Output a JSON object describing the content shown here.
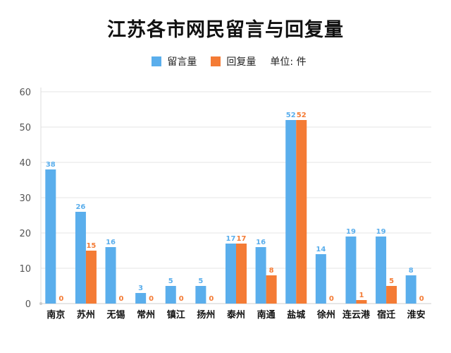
{
  "chart_data": {
    "type": "bar",
    "title": "江苏各市网民留言与回复量",
    "categories": [
      "南京",
      "苏州",
      "无锡",
      "常州",
      "镇江",
      "扬州",
      "泰州",
      "南通",
      "盐城",
      "徐州",
      "连云港",
      "宿迁",
      "淮安"
    ],
    "series": [
      {
        "name": "留言量",
        "color": "#5aaeec",
        "values": [
          38,
          26,
          16,
          3,
          5,
          5,
          17,
          16,
          52,
          14,
          19,
          19,
          8
        ]
      },
      {
        "name": "回复量",
        "color": "#f47b35",
        "values": [
          0,
          15,
          0,
          0,
          0,
          0,
          17,
          8,
          52,
          0,
          1,
          5,
          0
        ]
      }
    ],
    "unit_label": "单位: 件",
    "xlabel": "",
    "ylabel": "",
    "ylim": [
      0,
      60
    ],
    "yticks": [
      0,
      10,
      20,
      30,
      40,
      50,
      60
    ],
    "grid": true,
    "legend_position": "top-center"
  }
}
